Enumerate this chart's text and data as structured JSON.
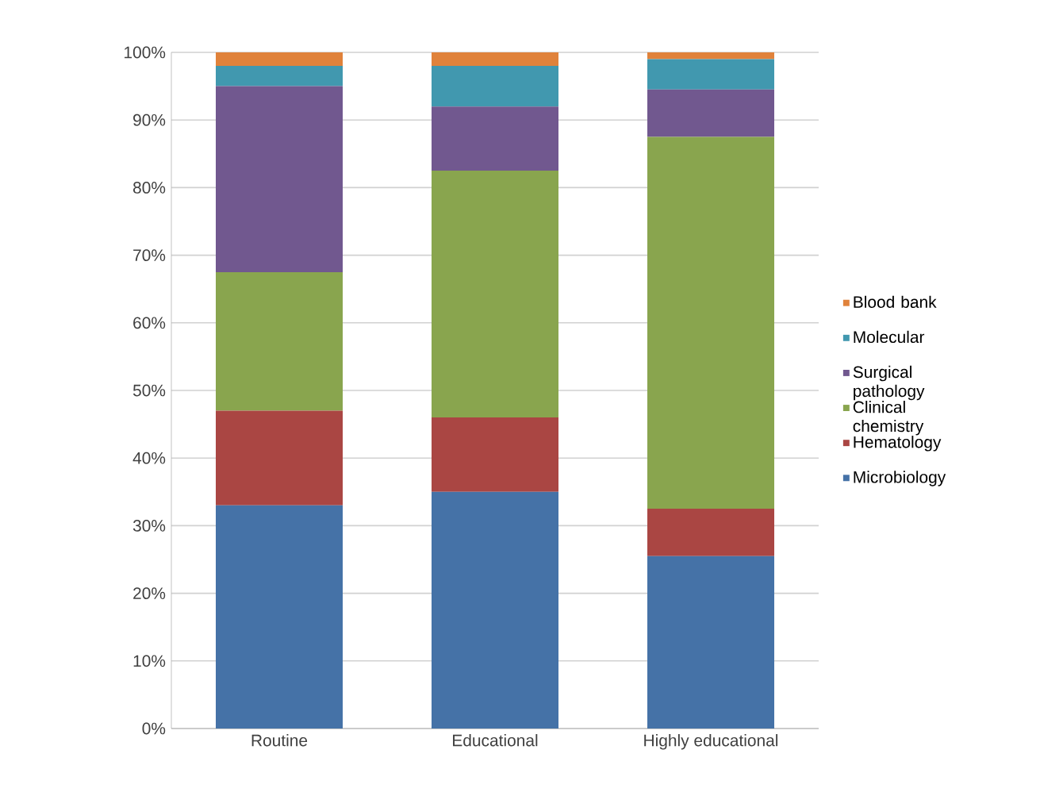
{
  "chart_data": {
    "type": "bar",
    "stacked": true,
    "categories": [
      "Routine",
      "Educational",
      "Highly educational"
    ],
    "series": [
      {
        "name": "Microbiology",
        "color": "#4572a7",
        "values": [
          33,
          35,
          25.5
        ]
      },
      {
        "name": "Hematology",
        "color": "#aa4643",
        "values": [
          14,
          11,
          7
        ]
      },
      {
        "name": "Clinical chemistry",
        "color": "#89a54e",
        "values": [
          20.5,
          36.5,
          55
        ]
      },
      {
        "name": "Surgical pathology",
        "color": "#71588f",
        "values": [
          27.5,
          9.5,
          7
        ]
      },
      {
        "name": "Molecular",
        "color": "#4198af",
        "values": [
          3,
          6,
          4.5
        ]
      },
      {
        "name": "Blood bank",
        "color": "#e0823b",
        "values": [
          2,
          2,
          1
        ]
      }
    ],
    "ylim": [
      0,
      100
    ],
    "yticks": [
      {
        "value": 0,
        "label": "0%"
      },
      {
        "value": 10,
        "label": "10%"
      },
      {
        "value": 20,
        "label": "20%"
      },
      {
        "value": 30,
        "label": "30%"
      },
      {
        "value": 40,
        "label": "40%"
      },
      {
        "value": 50,
        "label": "50%"
      },
      {
        "value": 60,
        "label": "60%"
      },
      {
        "value": 70,
        "label": "70%"
      },
      {
        "value": 80,
        "label": "80%"
      },
      {
        "value": 90,
        "label": "90%"
      },
      {
        "value": 100,
        "label": "100%"
      }
    ],
    "grid": "y",
    "legend": "right"
  }
}
